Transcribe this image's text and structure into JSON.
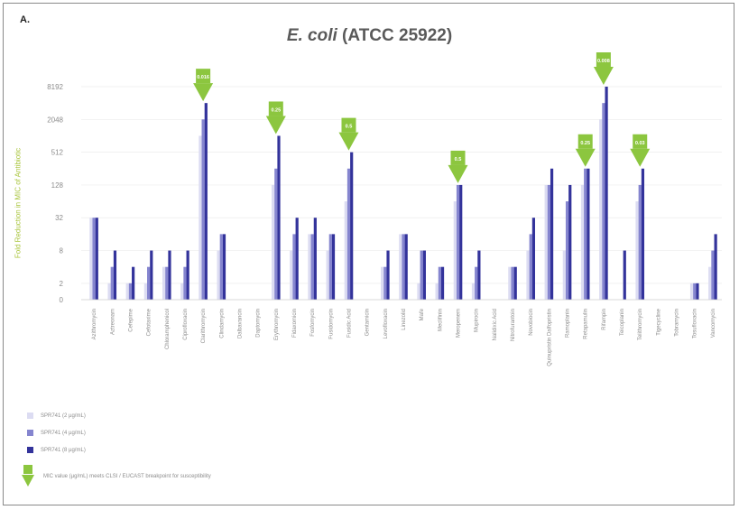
{
  "panel_label": "A.",
  "title_italic": "E. coli",
  "title_rest": " (ATCC 25922)",
  "subtitle": "",
  "chart_data": {
    "type": "bar",
    "title": "E. coli (ATCC 25922)",
    "ylabel": "Fold Reduction in MIC of Antibiotic",
    "yscale": "log2",
    "ylim": [
      1,
      8192
    ],
    "yticks": [
      1,
      2,
      8,
      32,
      128,
      512,
      2048,
      8192
    ],
    "ytick_labels": [
      "0",
      "2",
      "8",
      "32",
      "128",
      "512",
      "2048",
      "8192"
    ],
    "grid": true,
    "categories": [
      "Azithromycin",
      "Aztreonam",
      "Cefepime",
      "Cefotaxime",
      "Chloramphenicol",
      "Ciprofloxacin",
      "Clarithromycin",
      "Clindamycin",
      "Dalbavancin",
      "Daptomycin",
      "Erythromycin",
      "Fidaxomicin",
      "Fosfomycin",
      "Fusidomycin",
      "Fusidic Acid",
      "Gentamicin",
      "Levofloxacin",
      "Linezolid",
      "Mafe",
      "Meclifinin",
      "Meropenem",
      "Mupirocin",
      "Nalidixic Acid",
      "Nitrofurantoin",
      "Novobiocin",
      "Quinupristin Dalfopristin",
      "Ramoplanin",
      "Retapamulin",
      "Rifampin",
      "Teicoplanin",
      "Telithromycin",
      "Tigecycline",
      "Tobramycin",
      "Tosufloxacin",
      "Vancomycin"
    ],
    "series": [
      {
        "name": "SPR741 (2 µg/mL)",
        "values": [
          32,
          2,
          2,
          2,
          4,
          2,
          1024,
          8,
          1,
          1,
          128,
          8,
          16,
          8,
          64,
          1,
          4,
          16,
          2,
          2,
          64,
          2,
          1,
          4,
          8,
          128,
          8,
          128,
          2048,
          1,
          64,
          1,
          1,
          2,
          4
        ]
      },
      {
        "name": "SPR741 (4 µg/mL)",
        "values": [
          32,
          4,
          2,
          4,
          4,
          4,
          2048,
          16,
          1,
          1,
          256,
          16,
          16,
          16,
          256,
          1,
          4,
          16,
          8,
          4,
          128,
          4,
          1,
          4,
          16,
          128,
          64,
          256,
          4096,
          1,
          128,
          1,
          1,
          2,
          8
        ]
      },
      {
        "name": "SPR741 (8 µg/mL)",
        "values": [
          32,
          8,
          4,
          8,
          8,
          8,
          4096,
          16,
          1,
          1,
          1024,
          32,
          32,
          16,
          512,
          1,
          8,
          16,
          8,
          4,
          128,
          8,
          1,
          4,
          32,
          256,
          128,
          256,
          8192,
          8,
          256,
          1,
          1,
          2,
          16
        ]
      }
    ],
    "colors": [
      "#dcdcf2",
      "#8585cf",
      "#33339b"
    ],
    "annotations": [
      {
        "category": "Clarithromycin",
        "text": "0.016"
      },
      {
        "category": "Erythromycin",
        "text": "0.25"
      },
      {
        "category": "Fusidic Acid",
        "text": "0.5"
      },
      {
        "category": "Meropenem",
        "text": "0.5"
      },
      {
        "category": "Retapamulin",
        "text": "0.25"
      },
      {
        "category": "Rifampin",
        "text": "0.008"
      },
      {
        "category": "Telithromycin",
        "text": "0.03"
      }
    ],
    "legend_note": "MIC value (µg/mL) meets CLSI / EUCAST breakpoint for susceptibility",
    "legend_placement": "bottom-left"
  },
  "colors": {
    "axis_label": "#a8c43a",
    "arrow": "#8cc63f",
    "grid": "#ececec"
  }
}
